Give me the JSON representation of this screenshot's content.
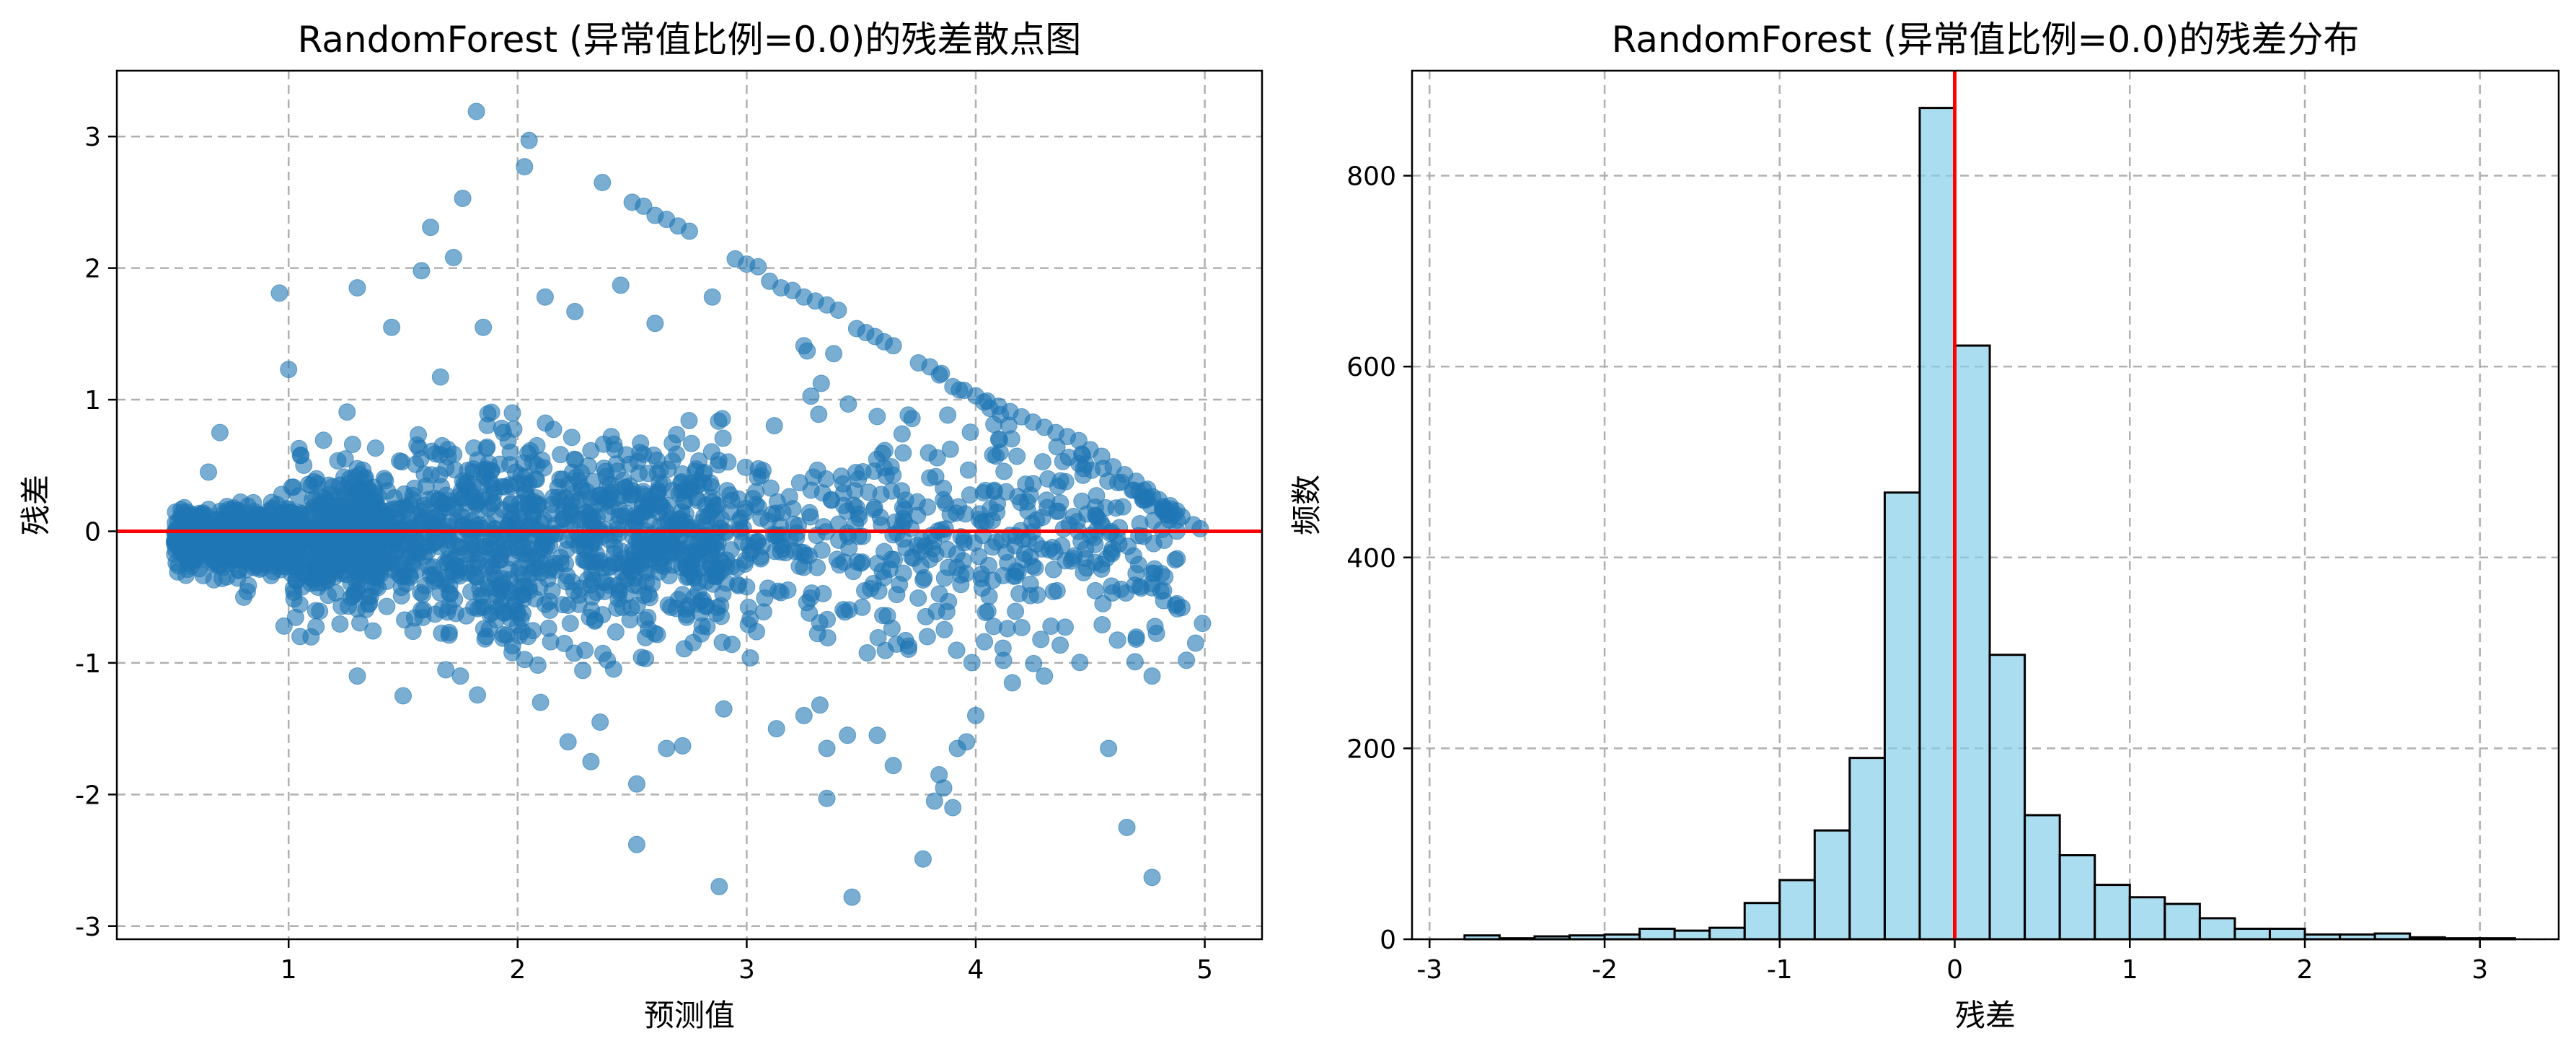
{
  "colors": {
    "scatter_point": "#1f77b4",
    "zero_line": "#ff0000",
    "hist_fill": "#87ceeb",
    "hist_edge": "#000000",
    "grid": "#b0b0b0"
  },
  "chart_data": [
    {
      "type": "scatter",
      "title": "RandomForest (异常值比例=0.0)的残差散点图",
      "xlabel": "预测值",
      "ylabel": "残差",
      "xlim": [
        0.25,
        5.25
      ],
      "ylim": [
        -3.1,
        3.5
      ],
      "xticks": [
        1,
        2,
        3,
        4,
        5
      ],
      "xtick_labels": [
        "1",
        "2",
        "3",
        "4",
        "5"
      ],
      "yticks": [
        -3,
        -2,
        -1,
        0,
        1,
        2,
        3
      ],
      "ytick_labels": [
        "-3",
        "-2",
        "-1",
        "0",
        "1",
        "2",
        "3"
      ],
      "grid": true,
      "reference_line": {
        "axis": "y",
        "value": 0,
        "color": "red"
      },
      "series": [
        {
          "marker": "circle",
          "alpha": 0.6,
          "points": [
            [
              1.82,
              3.19
            ],
            [
              2.05,
              2.97
            ],
            [
              2.03,
              2.77
            ],
            [
              1.76,
              2.53
            ],
            [
              1.62,
              2.31
            ],
            [
              1.72,
              2.08
            ],
            [
              2.37,
              2.65
            ],
            [
              2.5,
              2.5
            ],
            [
              2.55,
              2.47
            ],
            [
              2.6,
              2.4
            ],
            [
              2.65,
              2.37
            ],
            [
              2.7,
              2.32
            ],
            [
              2.75,
              2.28
            ],
            [
              2.95,
              2.07
            ],
            [
              3.0,
              2.03
            ],
            [
              3.05,
              2.01
            ],
            [
              3.1,
              1.9
            ],
            [
              3.15,
              1.85
            ],
            [
              3.2,
              1.83
            ],
            [
              3.25,
              1.78
            ],
            [
              3.3,
              1.75
            ],
            [
              3.35,
              1.72
            ],
            [
              3.4,
              1.68
            ],
            [
              3.48,
              1.54
            ],
            [
              3.52,
              1.51
            ],
            [
              3.56,
              1.48
            ],
            [
              3.6,
              1.44
            ],
            [
              3.64,
              1.41
            ],
            [
              3.75,
              1.28
            ],
            [
              3.8,
              1.25
            ],
            [
              3.85,
              1.2
            ],
            [
              3.9,
              1.1
            ],
            [
              3.95,
              1.07
            ],
            [
              4.0,
              1.03
            ],
            [
              4.05,
              0.99
            ],
            [
              4.1,
              0.95
            ],
            [
              4.15,
              0.91
            ],
            [
              4.2,
              0.87
            ],
            [
              4.25,
              0.83
            ],
            [
              4.3,
              0.79
            ],
            [
              4.35,
              0.75
            ],
            [
              4.4,
              0.72
            ],
            [
              4.45,
              0.69
            ],
            [
              4.5,
              0.62
            ],
            [
              4.55,
              0.57
            ],
            [
              4.6,
              0.49
            ],
            [
              4.65,
              0.43
            ],
            [
              4.7,
              0.38
            ],
            [
              4.75,
              0.32
            ],
            [
              4.8,
              0.24
            ],
            [
              4.85,
              0.17
            ],
            [
              4.9,
              0.11
            ],
            [
              4.95,
              0.05
            ],
            [
              4.98,
              0.02
            ],
            [
              1.3,
              1.85
            ],
            [
              0.96,
              1.81
            ],
            [
              1.58,
              1.98
            ],
            [
              1.45,
              1.55
            ],
            [
              1.85,
              1.55
            ],
            [
              2.12,
              1.78
            ],
            [
              2.25,
              1.67
            ],
            [
              2.45,
              1.87
            ],
            [
              2.6,
              1.58
            ],
            [
              2.85,
              1.78
            ],
            [
              3.25,
              1.41
            ],
            [
              3.38,
              1.35
            ],
            [
              4.18,
              0.57
            ],
            [
              4.38,
              0.53
            ],
            [
              4.62,
              0.37
            ],
            [
              4.7,
              -0.32
            ],
            [
              4.82,
              -0.45
            ],
            [
              4.9,
              -0.58
            ],
            [
              4.99,
              -0.7
            ],
            [
              4.96,
              -0.85
            ],
            [
              4.92,
              -0.98
            ],
            [
              4.77,
              -1.1
            ],
            [
              4.58,
              -1.65
            ],
            [
              4.66,
              -2.25
            ],
            [
              4.77,
              -2.63
            ],
            [
              4.3,
              -1.1
            ],
            [
              4.0,
              -1.4
            ],
            [
              3.96,
              -1.6
            ],
            [
              3.92,
              -1.65
            ],
            [
              3.84,
              -1.85
            ],
            [
              3.86,
              -1.95
            ],
            [
              3.9,
              -2.1
            ],
            [
              3.82,
              -2.05
            ],
            [
              3.77,
              -2.49
            ],
            [
              3.57,
              -1.55
            ],
            [
              3.64,
              -1.78
            ],
            [
              3.44,
              -1.55
            ],
            [
              3.46,
              -2.78
            ],
            [
              3.35,
              -1.65
            ],
            [
              3.35,
              -2.03
            ],
            [
              3.25,
              -1.4
            ],
            [
              3.13,
              -1.5
            ],
            [
              2.9,
              -1.35
            ],
            [
              2.88,
              -2.7
            ],
            [
              2.72,
              -1.63
            ],
            [
              2.65,
              -1.65
            ],
            [
              2.52,
              -1.92
            ],
            [
              2.52,
              -2.38
            ],
            [
              2.32,
              -1.75
            ],
            [
              2.36,
              -1.45
            ],
            [
              2.22,
              -1.6
            ],
            [
              2.1,
              -1.3
            ],
            [
              1.5,
              -1.25
            ],
            [
              1.3,
              -1.1
            ],
            [
              1.75,
              -1.1
            ],
            [
              1.05,
              -0.8
            ],
            [
              0.98,
              -0.72
            ],
            [
              0.7,
              0.75
            ],
            [
              0.65,
              0.45
            ],
            [
              1.0,
              1.23
            ]
          ],
          "cloud_note": "plus several thousand dense points near 0 concentrated between x≈0.5 and x≈3.5"
        }
      ]
    },
    {
      "type": "bar",
      "title": "RandomForest (异常值比例=0.0)的残差分布",
      "xlabel": "残差",
      "ylabel": "频数",
      "xlim": [
        -3.1,
        3.45
      ],
      "ylim": [
        0,
        910
      ],
      "xticks": [
        -3,
        -2,
        -1,
        0,
        1,
        2,
        3
      ],
      "xtick_labels": [
        "-3",
        "-2",
        "-1",
        "0",
        "1",
        "2",
        "3"
      ],
      "yticks": [
        0,
        200,
        400,
        600,
        800
      ],
      "ytick_labels": [
        "0",
        "200",
        "400",
        "600",
        "800"
      ],
      "grid": true,
      "reference_line": {
        "axis": "x",
        "value": 0,
        "color": "red"
      },
      "bin_edges": [
        -2.8,
        -2.6,
        -2.4,
        -2.2,
        -2.0,
        -1.8,
        -1.6,
        -1.4,
        -1.2,
        -1.0,
        -0.8,
        -0.6,
        -0.4,
        -0.2,
        0.0,
        0.2,
        0.4,
        0.6,
        0.8,
        1.0,
        1.2,
        1.4,
        1.6,
        1.8,
        2.0,
        2.2,
        2.4,
        2.6,
        2.8,
        3.0,
        3.2
      ],
      "counts": [
        4,
        1,
        3,
        4,
        5,
        11,
        9,
        12,
        38,
        62,
        114,
        190,
        468,
        871,
        622,
        298,
        130,
        88,
        57,
        44,
        37,
        22,
        11,
        11,
        5,
        5,
        6,
        2,
        1,
        1
      ]
    }
  ]
}
